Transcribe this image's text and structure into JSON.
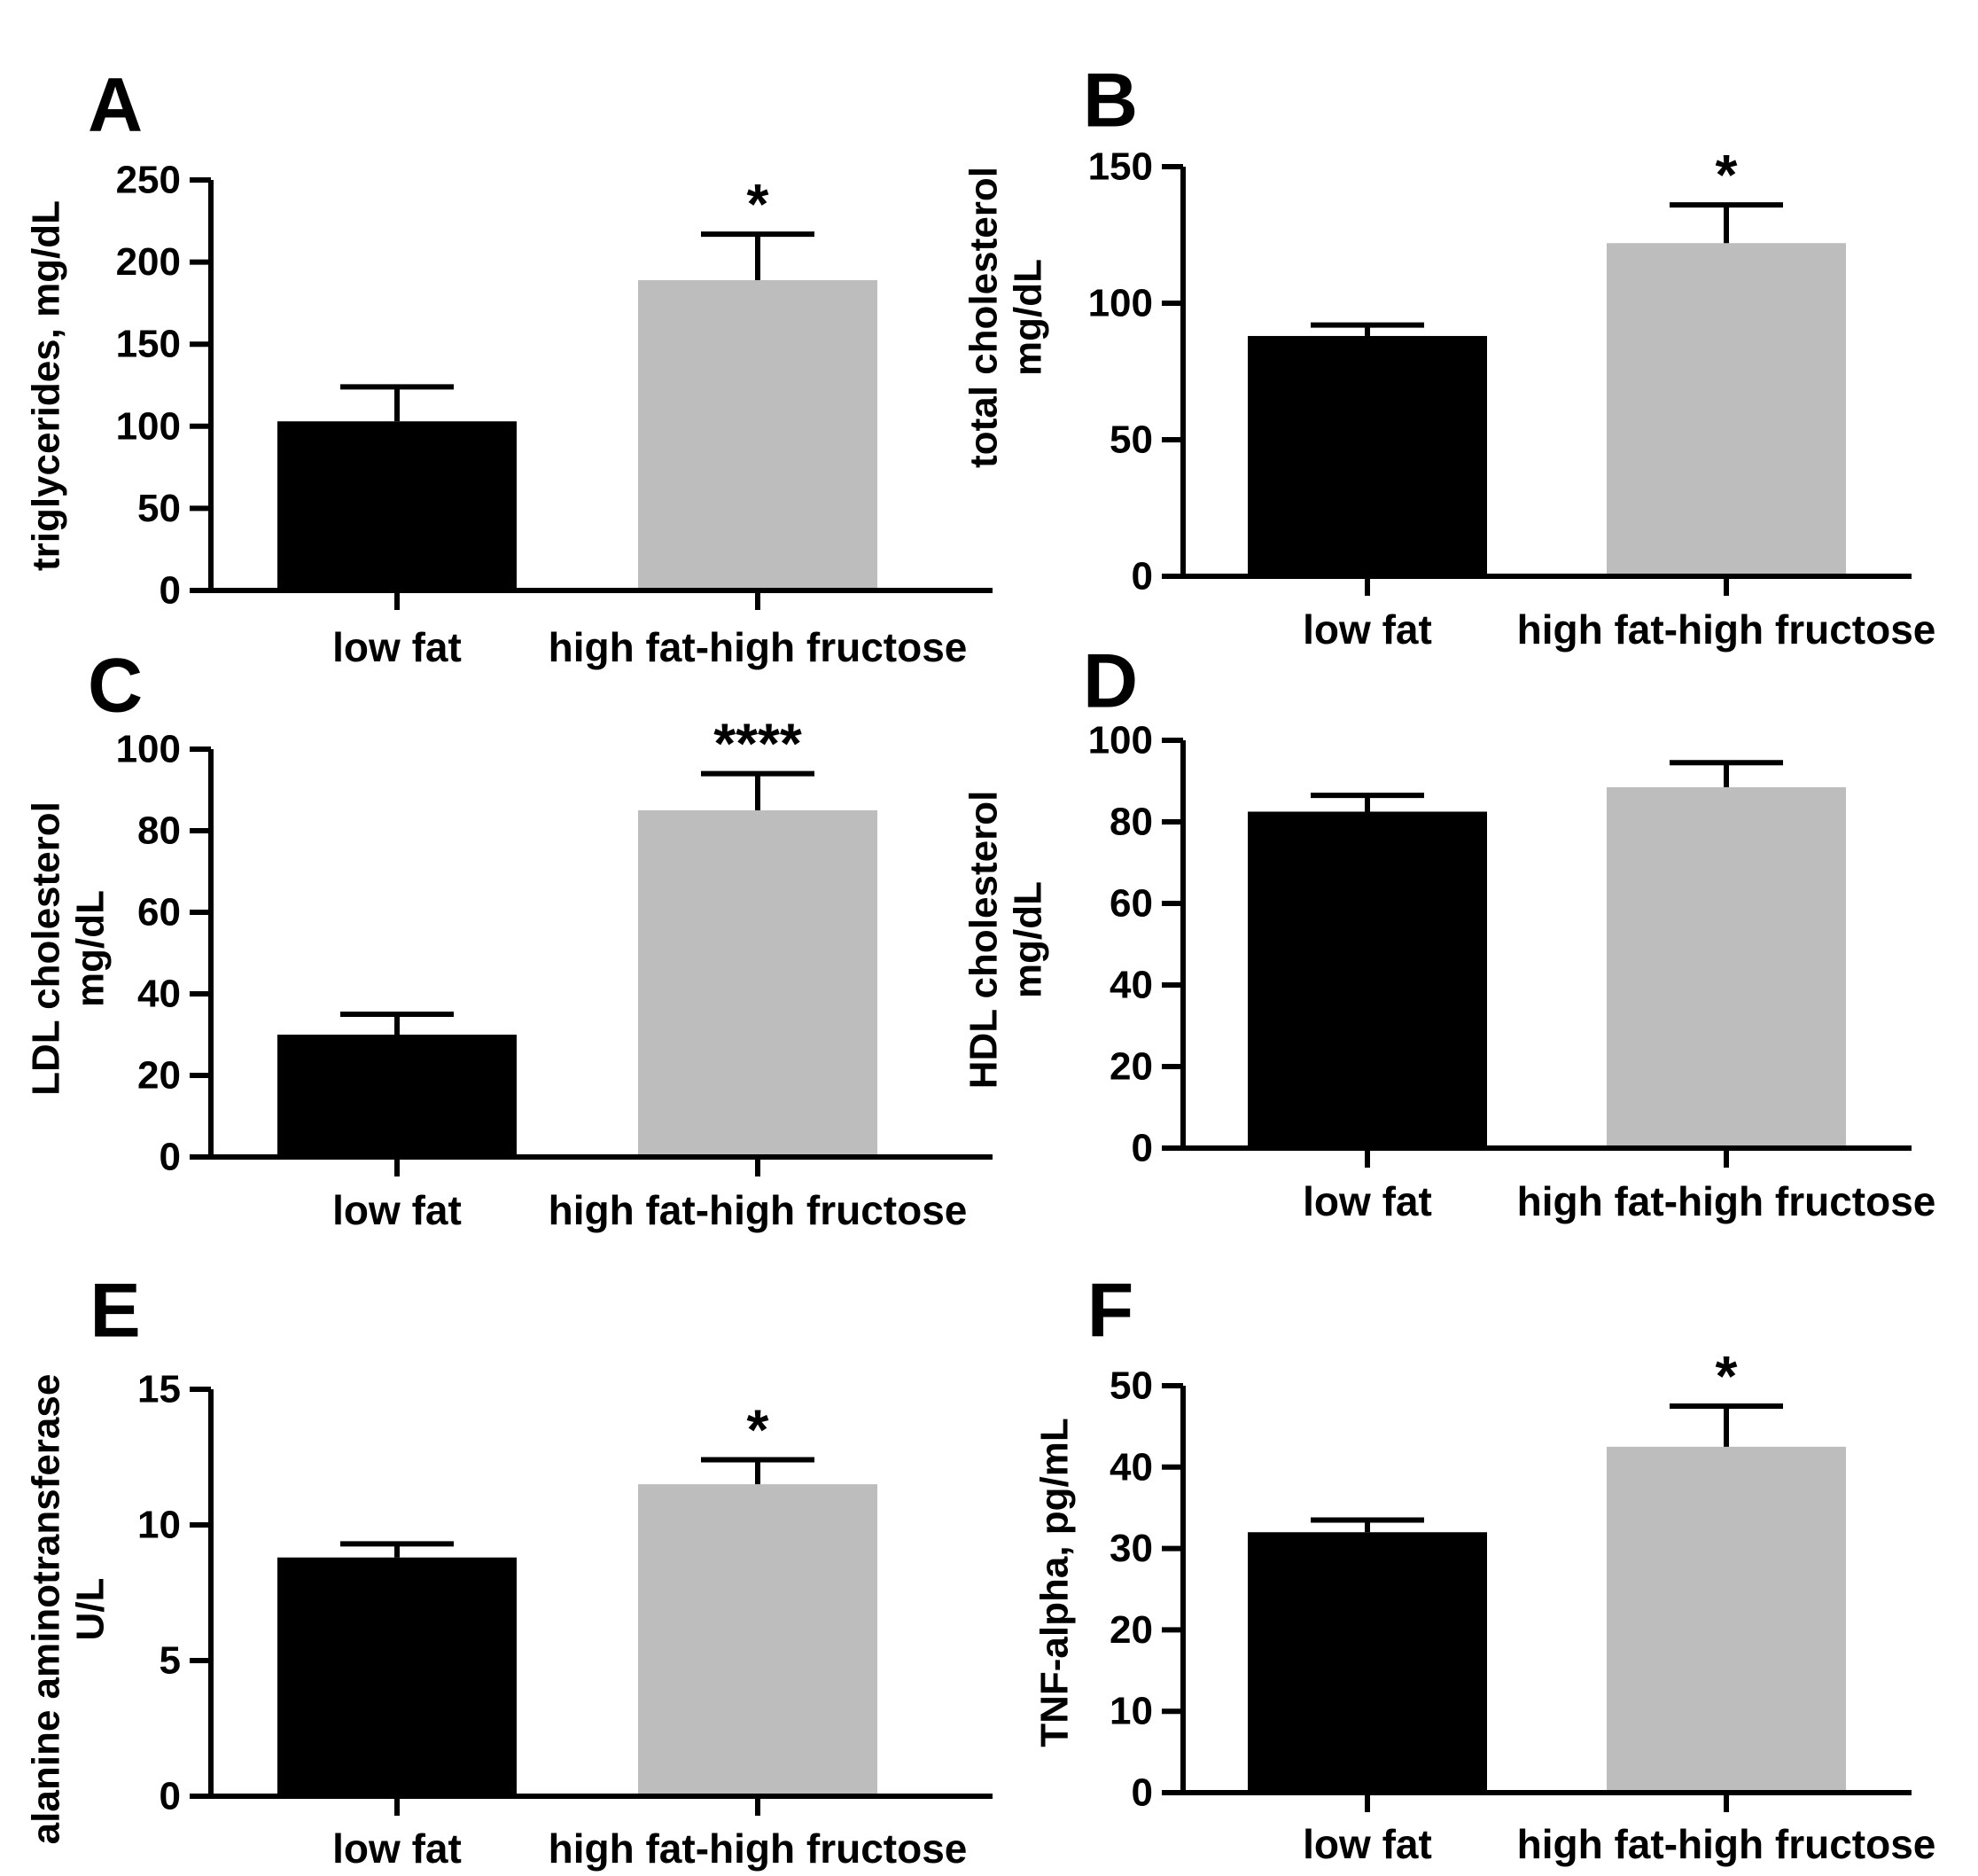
{
  "colors": {
    "low_fat": "#000000",
    "high_fat_high_fructose": "#bdbdbd",
    "axis": "#000000"
  },
  "chart_data": [
    {
      "panel": "A",
      "type": "bar",
      "categories": [
        "low fat",
        "high fat-high fructose"
      ],
      "values": [
        103,
        189
      ],
      "errors": [
        21,
        28
      ],
      "ylabel": [
        "triglycerides, mg/dL"
      ],
      "ylim": [
        0,
        250
      ],
      "yticks": [
        0,
        50,
        100,
        150,
        200,
        250
      ],
      "tick_labels": [
        "0",
        "50",
        "100",
        "150",
        "200",
        "250"
      ],
      "significance": [
        "",
        "*"
      ]
    },
    {
      "panel": "B",
      "type": "bar",
      "categories": [
        "low fat",
        "high fat-high fructose"
      ],
      "values": [
        88,
        122
      ],
      "errors": [
        4,
        14
      ],
      "ylabel": [
        "total cholesterol",
        "mg/dL"
      ],
      "ylim": [
        0,
        150
      ],
      "yticks": [
        0,
        50,
        100,
        150
      ],
      "tick_labels": [
        "0",
        "50",
        "100",
        "150"
      ],
      "significance": [
        "",
        "*"
      ]
    },
    {
      "panel": "C",
      "type": "bar",
      "categories": [
        "low fat",
        "high fat-high fructose"
      ],
      "values": [
        30,
        85
      ],
      "errors": [
        5,
        9
      ],
      "ylabel": [
        "LDL cholesterol",
        "mg/dL"
      ],
      "ylim": [
        0,
        100
      ],
      "yticks": [
        0,
        20,
        40,
        60,
        80,
        100
      ],
      "tick_labels": [
        "0",
        "20",
        "40",
        "60",
        "80",
        "100"
      ],
      "significance": [
        "",
        "****"
      ]
    },
    {
      "panel": "D",
      "type": "bar",
      "categories": [
        "low fat",
        "high fat-high fructose"
      ],
      "values": [
        82.5,
        88.5
      ],
      "errors": [
        4,
        6
      ],
      "ylabel": [
        "HDL cholesterol",
        "mg/dL"
      ],
      "ylim": [
        0,
        100
      ],
      "yticks": [
        0,
        20,
        40,
        60,
        80,
        100
      ],
      "tick_labels": [
        "0",
        "20",
        "40",
        "60",
        "80",
        "100"
      ],
      "significance": [
        "",
        ""
      ]
    },
    {
      "panel": "E",
      "type": "bar",
      "categories": [
        "low fat",
        "high fat-high fructose"
      ],
      "values": [
        8.8,
        11.5
      ],
      "errors": [
        0.5,
        0.9
      ],
      "ylabel": [
        "alanine aminotransferase",
        "U/L"
      ],
      "ylim": [
        0,
        15
      ],
      "yticks": [
        0,
        5,
        10,
        15
      ],
      "tick_labels": [
        "0",
        "5",
        "10",
        "15"
      ],
      "significance": [
        "",
        "*"
      ]
    },
    {
      "panel": "F",
      "type": "bar",
      "categories": [
        "low fat",
        "high fat-high fructose"
      ],
      "values": [
        32,
        42.5
      ],
      "errors": [
        1.5,
        5
      ],
      "ylabel": [
        "TNF-alpha, pg/mL"
      ],
      "ylim": [
        0,
        50
      ],
      "yticks": [
        0,
        10,
        20,
        30,
        40,
        50
      ],
      "tick_labels": [
        "0",
        "10",
        "20",
        "30",
        "40",
        "50"
      ],
      "significance": [
        "",
        "*"
      ]
    }
  ]
}
